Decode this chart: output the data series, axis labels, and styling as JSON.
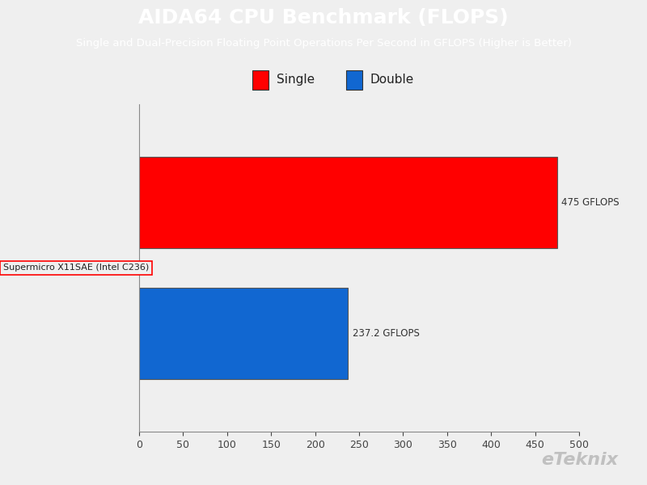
{
  "title": "AIDA64 CPU Benchmark (FLOPS)",
  "subtitle": "Single and Dual-Precision Floating Point Operations Per Second in GFLOPS (Higher is Better)",
  "title_bg_color": "#1EB0ED",
  "title_text_color": "#FFFFFF",
  "chart_bg_color": "#EFEFEF",
  "bar_label": "Supermicro X11SAE (Intel C236)",
  "single_value": 475.0,
  "double_value": 237.2,
  "single_color": "#FF0000",
  "double_color": "#1167D1",
  "single_label": "Single",
  "double_label": "Double",
  "single_annotation": "475 GFLOPS",
  "double_annotation": "237.2 GFLOPS",
  "xlim": [
    0,
    500
  ],
  "xticks": [
    0,
    50,
    100,
    150,
    200,
    250,
    300,
    350,
    400,
    450,
    500
  ],
  "watermark": "eTeknix",
  "watermark_color": "#C0C0C0",
  "figsize": [
    8.0,
    6.0
  ],
  "dpi": 100
}
